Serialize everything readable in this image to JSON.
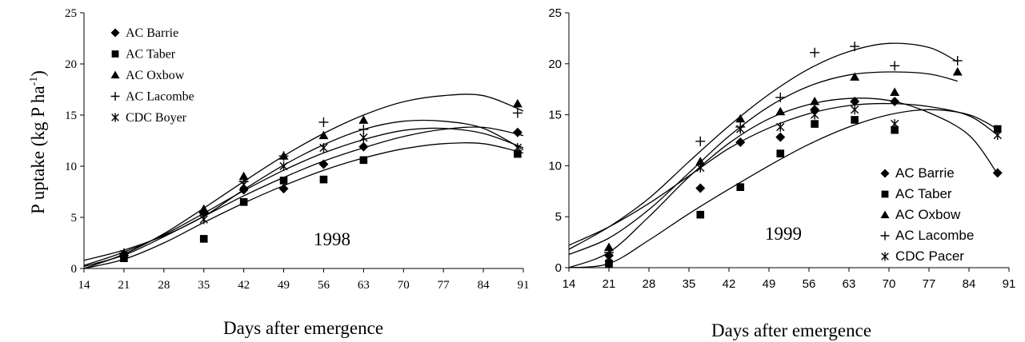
{
  "chart_data": [
    {
      "type": "scatter",
      "panel": "left",
      "annotation": "1998",
      "xlabel": "Days after emergence",
      "ylabel": "P uptake (kg P ha",
      "ylabel_sup": "-1",
      "ylabel_end": ")",
      "xlim": [
        14,
        91
      ],
      "ylim": [
        0,
        25
      ],
      "xticks": [
        14,
        21,
        28,
        35,
        42,
        49,
        56,
        63,
        70,
        77,
        84,
        91
      ],
      "yticks": [
        0,
        5,
        10,
        15,
        20,
        25
      ],
      "legend_position": "top-left",
      "series": [
        {
          "name": "AC Barrie",
          "marker": "diamond",
          "points": [
            [
              21,
              1.3
            ],
            [
              35,
              5.4
            ],
            [
              42,
              7.7
            ],
            [
              49,
              7.8
            ],
            [
              56,
              10.2
            ],
            [
              63,
              11.9
            ],
            [
              90,
              13.3
            ]
          ],
          "curve": [
            [
              14,
              0.2
            ],
            [
              21,
              1.3
            ],
            [
              28,
              3.1
            ],
            [
              35,
              5.1
            ],
            [
              42,
              7.1
            ],
            [
              49,
              8.9
            ],
            [
              56,
              10.5
            ],
            [
              63,
              11.8
            ],
            [
              70,
              12.9
            ],
            [
              77,
              13.6
            ],
            [
              84,
              13.8
            ],
            [
              91,
              13.0
            ]
          ]
        },
        {
          "name": "AC Taber",
          "marker": "square",
          "points": [
            [
              21,
              1.0
            ],
            [
              35,
              2.9
            ],
            [
              42,
              6.5
            ],
            [
              49,
              8.6
            ],
            [
              56,
              8.7
            ],
            [
              63,
              10.6
            ],
            [
              90,
              11.2
            ]
          ],
          "curve": [
            [
              14,
              0.0
            ],
            [
              21,
              0.9
            ],
            [
              28,
              2.5
            ],
            [
              35,
              4.5
            ],
            [
              42,
              6.4
            ],
            [
              49,
              8.1
            ],
            [
              56,
              9.6
            ],
            [
              63,
              10.8
            ],
            [
              70,
              11.7
            ],
            [
              77,
              12.2
            ],
            [
              84,
              12.2
            ],
            [
              91,
              11.3
            ]
          ]
        },
        {
          "name": "AC Oxbow",
          "marker": "triangle",
          "points": [
            [
              21,
              1.5
            ],
            [
              35,
              5.8
            ],
            [
              42,
              9.0
            ],
            [
              49,
              11.0
            ],
            [
              56,
              13.0
            ],
            [
              63,
              14.5
            ],
            [
              90,
              16.1
            ]
          ],
          "curve": [
            [
              14,
              0.0
            ],
            [
              21,
              1.4
            ],
            [
              28,
              3.4
            ],
            [
              35,
              5.9
            ],
            [
              42,
              8.5
            ],
            [
              49,
              11.0
            ],
            [
              56,
              13.2
            ],
            [
              63,
              15.0
            ],
            [
              70,
              16.3
            ],
            [
              77,
              16.9
            ],
            [
              84,
              16.9
            ],
            [
              91,
              15.4
            ]
          ]
        },
        {
          "name": "AC Lacombe",
          "marker": "plus",
          "points": [
            [
              21,
              1.5
            ],
            [
              35,
              5.5
            ],
            [
              42,
              8.5
            ],
            [
              49,
              11.0
            ],
            [
              56,
              14.3
            ],
            [
              63,
              13.6
            ],
            [
              90,
              15.2
            ]
          ],
          "curve": [
            [
              14,
              0.8
            ],
            [
              21,
              1.8
            ],
            [
              28,
              3.2
            ],
            [
              35,
              5.1
            ],
            [
              42,
              7.7
            ],
            [
              49,
              10.1
            ],
            [
              56,
              12.1
            ],
            [
              63,
              13.6
            ],
            [
              70,
              14.4
            ],
            [
              77,
              14.4
            ],
            [
              84,
              13.7
            ],
            [
              91,
              11.6
            ]
          ]
        },
        {
          "name": "CDC Boyer",
          "marker": "asterisk",
          "points": [
            [
              21,
              1.4
            ],
            [
              35,
              4.8
            ],
            [
              42,
              8.2
            ],
            [
              49,
              10.0
            ],
            [
              56,
              11.8
            ],
            [
              63,
              12.8
            ],
            [
              90,
              11.8
            ]
          ],
          "curve": [
            [
              14,
              0.3
            ],
            [
              21,
              1.6
            ],
            [
              28,
              3.3
            ],
            [
              35,
              5.4
            ],
            [
              42,
              7.6
            ],
            [
              49,
              9.6
            ],
            [
              56,
              11.3
            ],
            [
              63,
              12.6
            ],
            [
              70,
              13.5
            ],
            [
              77,
              13.7
            ],
            [
              84,
              13.2
            ],
            [
              91,
              11.8
            ]
          ]
        }
      ]
    },
    {
      "type": "scatter",
      "panel": "right",
      "annotation": "1999",
      "xlabel": "Days after emergence",
      "xlim": [
        14,
        91
      ],
      "ylim": [
        0,
        25
      ],
      "xticks": [
        14,
        21,
        28,
        35,
        42,
        49,
        56,
        63,
        70,
        77,
        84,
        91
      ],
      "yticks": [
        0,
        5,
        10,
        15,
        20,
        25
      ],
      "legend_position": "bottom-right",
      "series": [
        {
          "name": "AC Barrie",
          "marker": "diamond",
          "points": [
            [
              21,
              1.2
            ],
            [
              37,
              7.8
            ],
            [
              44,
              12.3
            ],
            [
              51,
              12.8
            ],
            [
              57,
              15.5
            ],
            [
              64,
              16.3
            ],
            [
              71,
              16.3
            ],
            [
              89,
              9.3
            ]
          ],
          "curve": [
            [
              14,
              0.0
            ],
            [
              21,
              1.5
            ],
            [
              28,
              5.0
            ],
            [
              35,
              8.9
            ],
            [
              42,
              12.2
            ],
            [
              49,
              14.6
            ],
            [
              56,
              16.0
            ],
            [
              63,
              16.6
            ],
            [
              70,
              16.4
            ],
            [
              77,
              15.2
            ],
            [
              84,
              13.0
            ],
            [
              89,
              9.2
            ]
          ]
        },
        {
          "name": "AC Taber",
          "marker": "square",
          "points": [
            [
              21,
              0.4
            ],
            [
              37,
              5.2
            ],
            [
              44,
              7.9
            ],
            [
              51,
              11.2
            ],
            [
              57,
              14.1
            ],
            [
              64,
              14.5
            ],
            [
              71,
              13.5
            ],
            [
              89,
              13.6
            ]
          ],
          "curve": [
            [
              14,
              0.0
            ],
            [
              21,
              0.4
            ],
            [
              28,
              2.7
            ],
            [
              35,
              5.3
            ],
            [
              42,
              7.7
            ],
            [
              49,
              10.0
            ],
            [
              56,
              12.1
            ],
            [
              63,
              13.8
            ],
            [
              70,
              15.0
            ],
            [
              77,
              15.5
            ],
            [
              84,
              15.0
            ],
            [
              89,
              13.6
            ]
          ]
        },
        {
          "name": "AC Oxbow",
          "marker": "triangle",
          "points": [
            [
              21,
              2.0
            ],
            [
              37,
              10.4
            ],
            [
              44,
              14.6
            ],
            [
              51,
              15.3
            ],
            [
              57,
              16.3
            ],
            [
              64,
              18.7
            ],
            [
              71,
              17.2
            ],
            [
              82,
              19.2
            ]
          ],
          "curve": [
            [
              14,
              1.3
            ],
            [
              21,
              2.9
            ],
            [
              28,
              5.7
            ],
            [
              35,
              9.3
            ],
            [
              42,
              12.9
            ],
            [
              49,
              15.8
            ],
            [
              56,
              17.8
            ],
            [
              63,
              18.9
            ],
            [
              70,
              19.2
            ],
            [
              77,
              19.0
            ],
            [
              82,
              18.3
            ]
          ]
        },
        {
          "name": "AC Lacombe",
          "marker": "plus",
          "points": [
            [
              21,
              1.5
            ],
            [
              37,
              12.4
            ],
            [
              44,
              13.8
            ],
            [
              51,
              16.7
            ],
            [
              57,
              21.1
            ],
            [
              64,
              21.7
            ],
            [
              71,
              19.8
            ],
            [
              82,
              20.3
            ]
          ],
          "curve": [
            [
              14,
              1.8
            ],
            [
              21,
              4.0
            ],
            [
              28,
              6.8
            ],
            [
              35,
              10.4
            ],
            [
              42,
              13.9
            ],
            [
              49,
              17.0
            ],
            [
              56,
              19.5
            ],
            [
              63,
              21.2
            ],
            [
              70,
              22.0
            ],
            [
              77,
              21.6
            ],
            [
              82,
              20.2
            ]
          ]
        },
        {
          "name": "CDC Pacer",
          "marker": "asterisk",
          "points": [
            [
              21,
              1.0
            ],
            [
              37,
              9.8
            ],
            [
              44,
              13.6
            ],
            [
              51,
              13.8
            ],
            [
              57,
              15.0
            ],
            [
              64,
              15.5
            ],
            [
              71,
              14.1
            ],
            [
              89,
              13.0
            ]
          ],
          "curve": [
            [
              14,
              2.2
            ],
            [
              21,
              4.0
            ],
            [
              28,
              6.3
            ],
            [
              35,
              9.0
            ],
            [
              42,
              11.7
            ],
            [
              49,
              13.7
            ],
            [
              56,
              15.1
            ],
            [
              63,
              15.9
            ],
            [
              70,
              16.1
            ],
            [
              77,
              15.8
            ],
            [
              84,
              14.9
            ],
            [
              89,
              13.0
            ]
          ]
        }
      ]
    }
  ]
}
